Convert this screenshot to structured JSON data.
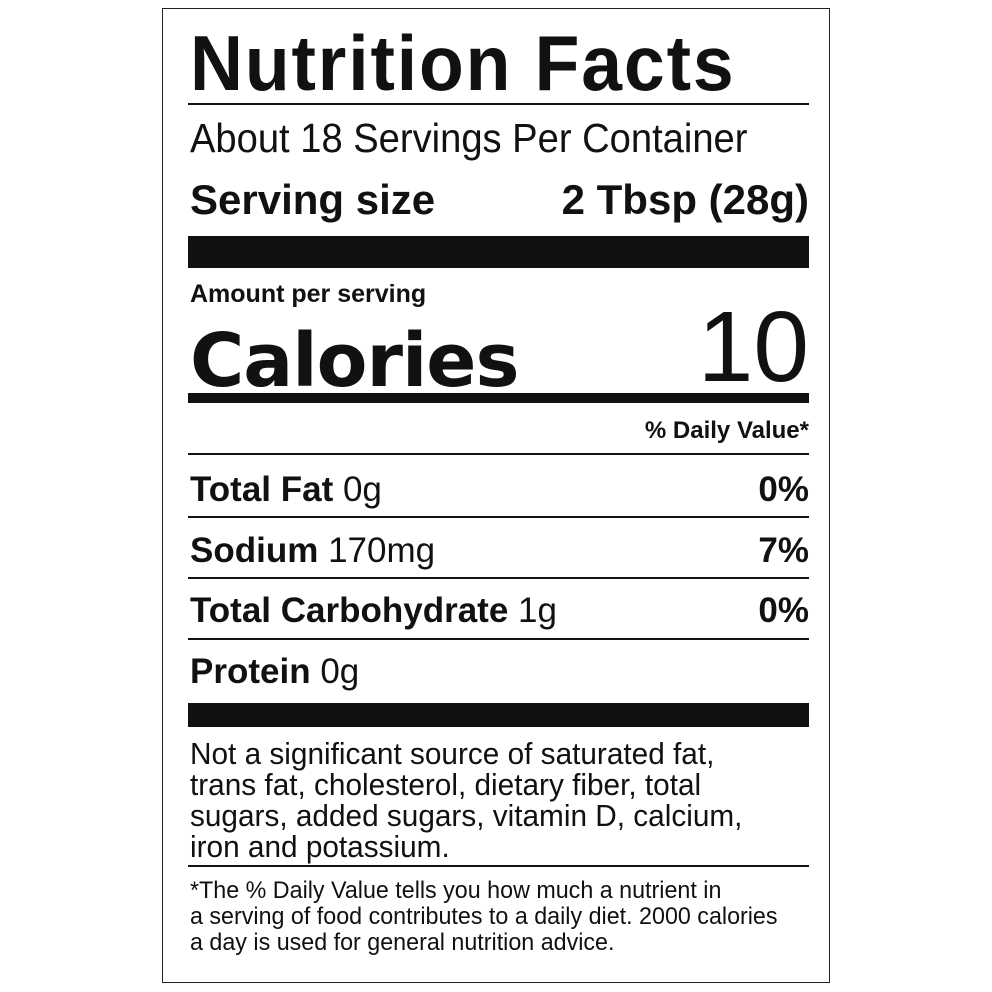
{
  "title": "Nutrition Facts",
  "servings_per_container": "About 18 Servings Per Container",
  "serving_size": {
    "label": "Serving size",
    "value": "2 Tbsp (28g)"
  },
  "amount_per_serving": "Amount per serving",
  "calories": {
    "label": "Calories",
    "value": "10"
  },
  "daily_value_header": "% Daily Value*",
  "nutrients": [
    {
      "name": "Total Fat",
      "amount": "0g",
      "dv": "0%"
    },
    {
      "name": "Sodium",
      "amount": "170mg",
      "dv": "7%"
    },
    {
      "name": "Total Carbohydrate",
      "amount": "1g",
      "dv": "0%"
    },
    {
      "name": "Protein",
      "amount": "0g",
      "dv": ""
    }
  ],
  "not_significant": [
    "Not a significant source of saturated fat,",
    "trans fat, cholesterol, dietary fiber, total",
    "sugars, added sugars, vitamin D, calcium,",
    "iron and potassium."
  ],
  "footnote": [
    "*The % Daily Value tells you how much a nutrient in",
    "a serving of food contributes to a daily diet. 2000 calories",
    "a day is used for general nutrition advice."
  ]
}
